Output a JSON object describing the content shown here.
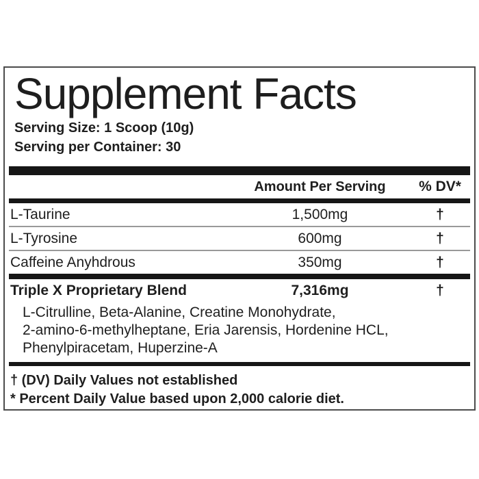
{
  "label": {
    "title": "Supplement Facts",
    "serving_size": "Serving Size: 1 Scoop (10g)",
    "servings_per_container": "Serving per Container: 30",
    "columns": {
      "amount": "Amount Per Serving",
      "dv": "% DV*"
    },
    "rows": [
      {
        "name": "L-Taurine",
        "amount": "1,500mg",
        "dv": "†"
      },
      {
        "name": "L-Tyrosine",
        "amount": "600mg",
        "dv": "†"
      },
      {
        "name": "Caffeine Anyhdrous",
        "amount": "350mg",
        "dv": "†"
      }
    ],
    "blend": {
      "name": "Triple X Proprietary Blend",
      "amount": "7,316mg",
      "dv": "†",
      "ingredients_lines": [
        "L-Citrulline, Beta-Alanine, Creatine Monohydrate,",
        "2-amino-6-methylheptane, Eria Jarensis, Hordenine HCL,",
        "Phenylpiracetam, Huperzine-A"
      ]
    },
    "footnotes": [
      "† (DV) Daily Values not established",
      "* Percent Daily Value based upon 2,000 calorie diet."
    ],
    "colors": {
      "text": "#1e1e1e",
      "bar": "#161616",
      "separator": "#999999",
      "border": "#4b4b4b",
      "background": "#ffffff"
    }
  }
}
